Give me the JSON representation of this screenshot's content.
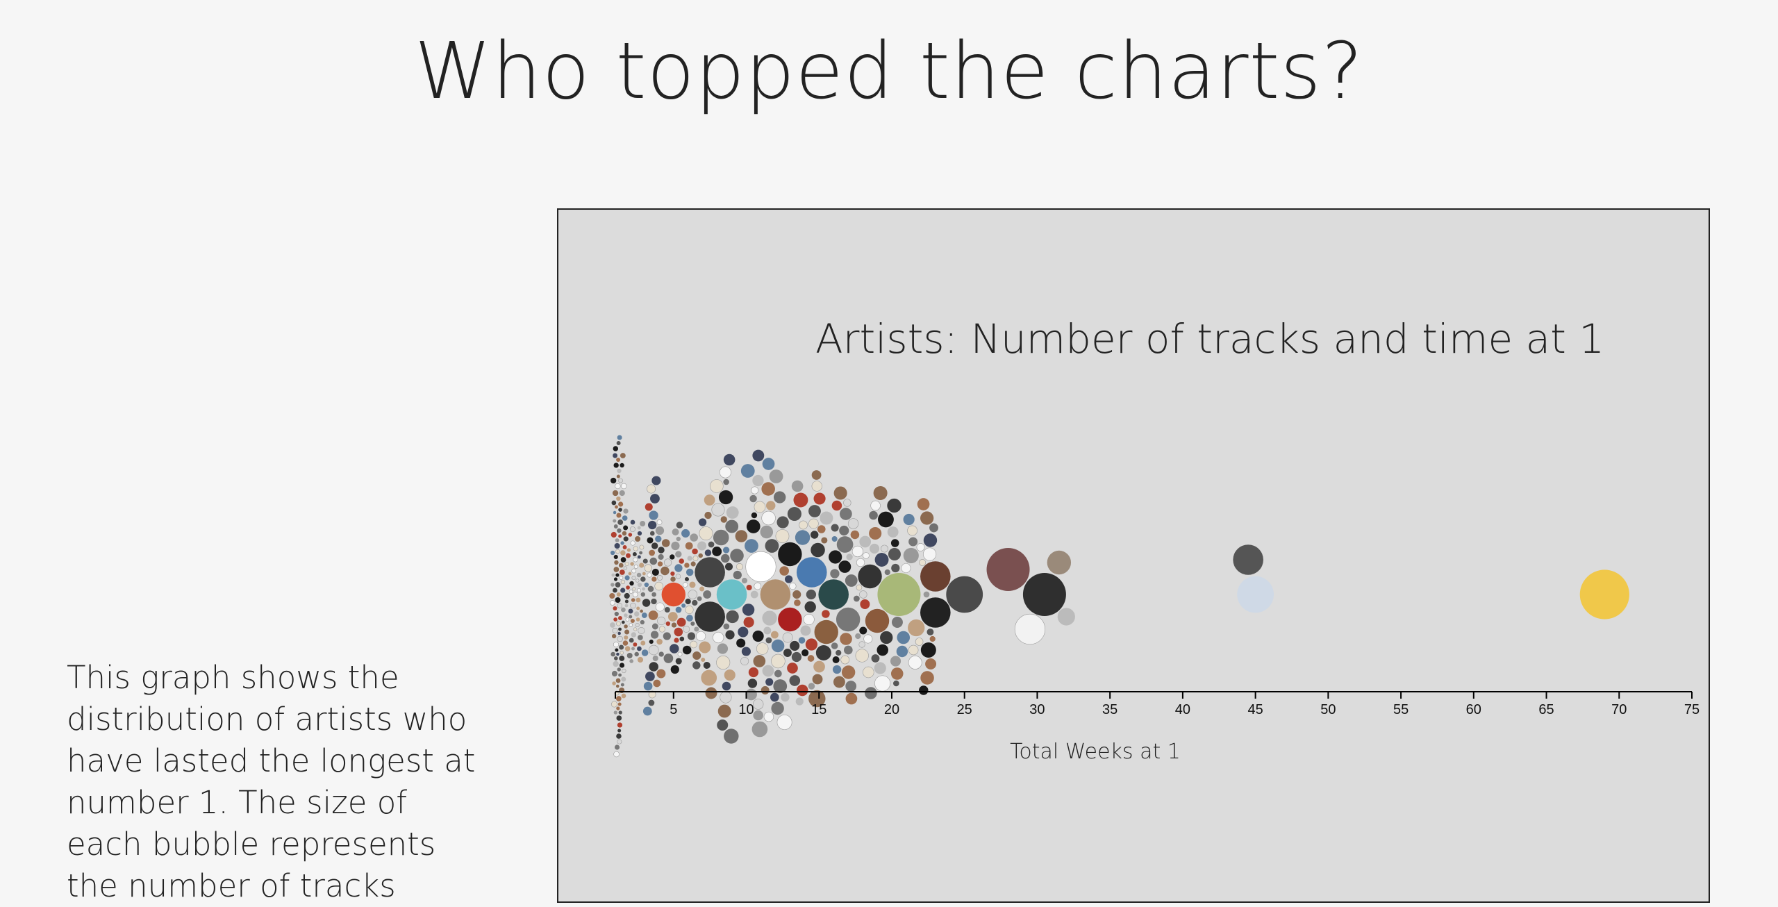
{
  "page": {
    "title": "Who topped the charts?",
    "description": "This graph shows the distribution of artists who have lasted the longest at number 1. The size of each bubble represents the number of tracks"
  },
  "chart_data": {
    "type": "scatter",
    "title": "Artists: Number of tracks and time at 1",
    "xlabel": "Total Weeks at 1",
    "ylabel": "",
    "xlim": [
      1,
      75
    ],
    "x_ticks": [
      5,
      10,
      15,
      20,
      25,
      30,
      35,
      40,
      45,
      50,
      55,
      60,
      65,
      70,
      75
    ],
    "x_tick_labels": [
      "5",
      "10",
      "15",
      "20",
      "25",
      "30",
      "35",
      "40",
      "45",
      "50",
      "55",
      "60",
      "65",
      "70",
      "75"
    ],
    "grid": false,
    "legend": "none",
    "encoding": "beeswarm; bubble radius = number of tracks; fill = artist photo",
    "points": [
      {
        "x": 69,
        "tracks": 6,
        "color": "#f0c84a"
      },
      {
        "x": 45,
        "tracks": 4,
        "color": "#cfd9e6"
      },
      {
        "x": 44.5,
        "tracks": 3,
        "color": "#555555"
      },
      {
        "x": 30.5,
        "tracks": 5,
        "color": "#2f2f2f"
      },
      {
        "x": 29.5,
        "tracks": 3,
        "color": "#f2f2f2"
      },
      {
        "x": 28,
        "tracks": 5,
        "color": "#7a5050"
      },
      {
        "x": 31.5,
        "tracks": 2,
        "color": "#9a8a7a"
      },
      {
        "x": 32,
        "tracks": 1,
        "color": "#bbbbbb"
      },
      {
        "x": 25,
        "tracks": 4,
        "color": "#4a4a4a"
      },
      {
        "x": 23,
        "tracks": 3,
        "color": "#6a4030"
      },
      {
        "x": 23,
        "tracks": 3,
        "color": "#222222"
      },
      {
        "x": 20.5,
        "tracks": 5,
        "color": "#a8b878"
      },
      {
        "x": 18.5,
        "tracks": 2,
        "color": "#333333"
      },
      {
        "x": 19,
        "tracks": 2,
        "color": "#8b5a3c"
      },
      {
        "x": 17,
        "tracks": 2,
        "color": "#777777"
      },
      {
        "x": 16,
        "tracks": 3,
        "color": "#2a4a4a"
      },
      {
        "x": 15.5,
        "tracks": 2,
        "color": "#8a6040"
      },
      {
        "x": 14.5,
        "tracks": 3,
        "color": "#4a7ab0"
      },
      {
        "x": 13,
        "tracks": 2,
        "color": "#aa2020"
      },
      {
        "x": 12,
        "tracks": 3,
        "color": "#b09070"
      },
      {
        "x": 9,
        "tracks": 3,
        "color": "#6ac0c8"
      },
      {
        "x": 7.5,
        "tracks": 3,
        "color": "#444444"
      },
      {
        "x": 7.5,
        "tracks": 3,
        "color": "#333333"
      },
      {
        "x": 11,
        "tracks": 3,
        "color": "#ffffff"
      },
      {
        "x": 13,
        "tracks": 2,
        "color": "#1a1a1a"
      },
      {
        "x": 5,
        "tracks": 2,
        "color": "#e05030"
      }
    ]
  }
}
